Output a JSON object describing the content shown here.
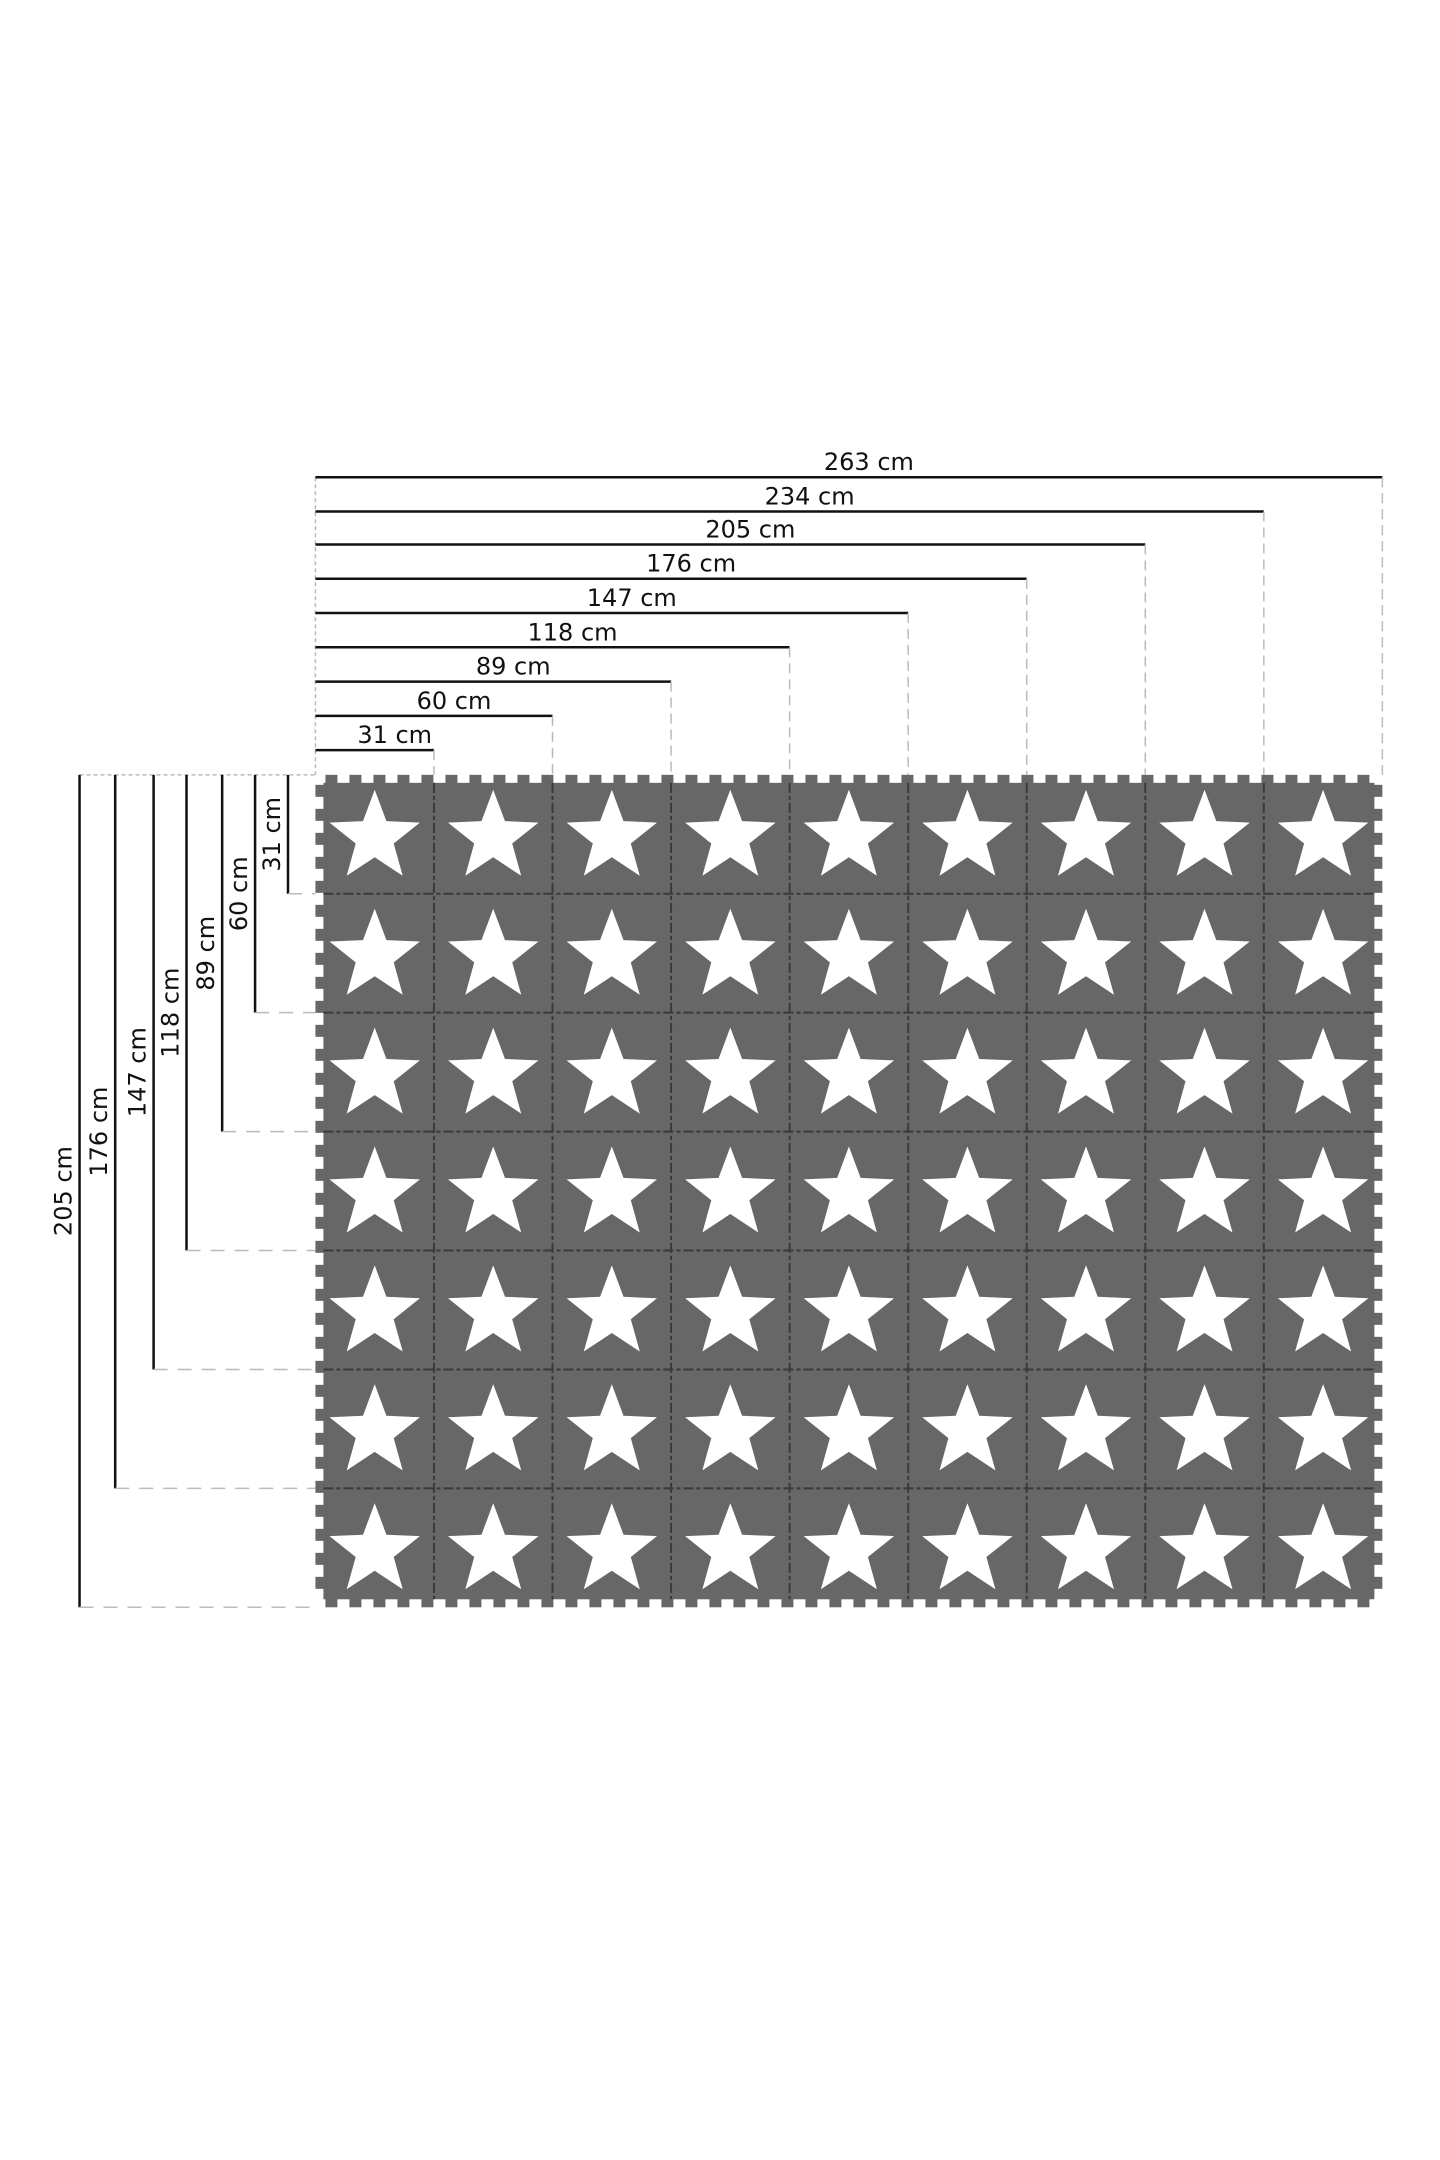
{
  "colors": {
    "tile": "#676767",
    "seam": "#3a3a3a",
    "star": "#ffffff",
    "line": "#111111",
    "guide": "#bbbbbb"
  },
  "grid": {
    "columns": 9,
    "rows": 7,
    "icon": "star-icon"
  },
  "width_dimensions": [
    {
      "value": 31,
      "label": "31 cm"
    },
    {
      "value": 60,
      "label": "60 cm"
    },
    {
      "value": 89,
      "label": "89 cm"
    },
    {
      "value": 118,
      "label": "118 cm"
    },
    {
      "value": 147,
      "label": "147 cm"
    },
    {
      "value": 176,
      "label": "176 cm"
    },
    {
      "value": 205,
      "label": "205 cm"
    },
    {
      "value": 234,
      "label": "234 cm"
    },
    {
      "value": 263,
      "label": "263 cm"
    }
  ],
  "height_dimensions": [
    {
      "value": 31,
      "label": "31 cm"
    },
    {
      "value": 60,
      "label": "60 cm"
    },
    {
      "value": 89,
      "label": "89 cm"
    },
    {
      "value": 118,
      "label": "118 cm"
    },
    {
      "value": 147,
      "label": "147 cm"
    },
    {
      "value": 176,
      "label": "176 cm"
    },
    {
      "value": 205,
      "label": "205 cm"
    }
  ]
}
